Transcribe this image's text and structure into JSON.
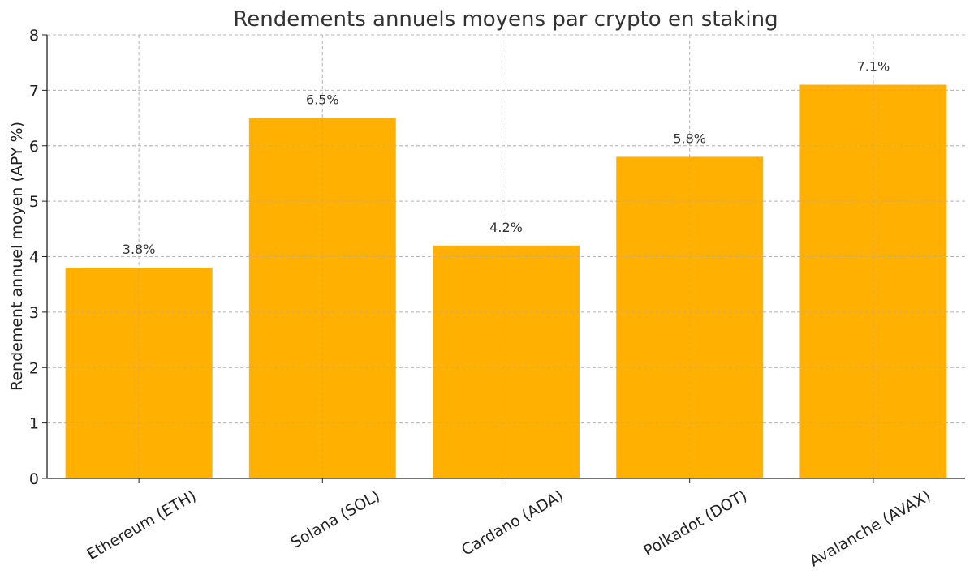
{
  "chart_data": {
    "type": "bar",
    "title": "Rendements annuels moyens par crypto en staking",
    "xlabel": "",
    "ylabel": "Rendement annuel moyen (APY %)",
    "categories": [
      "Ethereum (ETH)",
      "Solana (SOL)",
      "Cardano (ADA)",
      "Polkadot (DOT)",
      "Avalanche (AVAX)"
    ],
    "values": [
      3.8,
      6.5,
      4.2,
      5.8,
      7.1
    ],
    "value_labels": [
      "3.8%",
      "6.5%",
      "4.2%",
      "5.8%",
      "7.1%"
    ],
    "ylim": [
      0,
      8
    ],
    "yticks": [
      0,
      1,
      2,
      3,
      4,
      5,
      6,
      7,
      8
    ],
    "ytick_labels": [
      "0",
      "1",
      "2",
      "3",
      "4",
      "5",
      "6",
      "7",
      "8"
    ],
    "grid": true,
    "bar_color": "#FFB000",
    "x_tick_rotation_deg": -30
  }
}
